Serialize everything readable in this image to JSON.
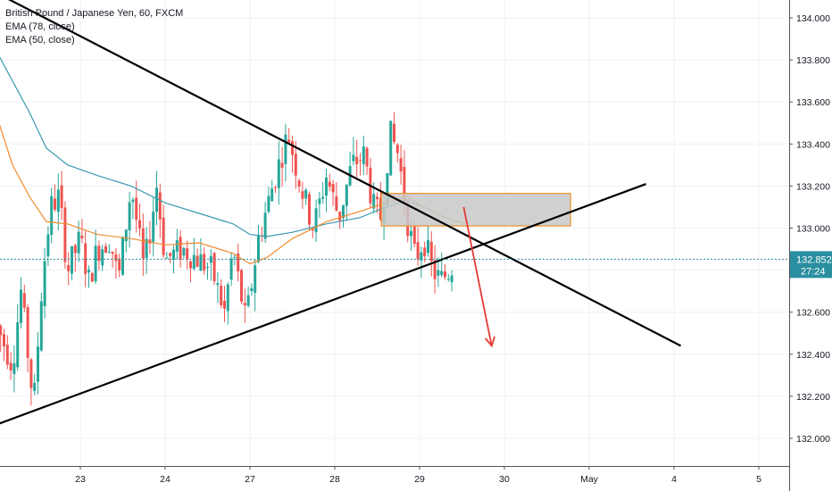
{
  "legend": {
    "title": "British Pound / Japanese Yen, 60, FXCM",
    "ema1": "EMA (78, close)",
    "ema2": "EMA (50, close)"
  },
  "colors": {
    "up": "#26a69a",
    "down": "#ef5350",
    "ema78": "#3a9bb0",
    "ema50": "#f28b2e",
    "trendline": "#000000",
    "zone_fill": "#c8c8c8",
    "zone_border": "#f0902a",
    "arrow": "#e53935",
    "price_label": "#2a8fa0",
    "grid": "#eef0f3"
  },
  "chart_data": {
    "type": "candlestick",
    "ylim": [
      131.86,
      134.09
    ],
    "yticks": [
      "134.000",
      "133.800",
      "133.600",
      "133.400",
      "133.200",
      "133.000",
      "132.800",
      "132.600",
      "132.400",
      "132.200",
      "132.000"
    ],
    "ytick_values": [
      134.0,
      133.8,
      133.6,
      133.4,
      133.2,
      133.0,
      132.8,
      132.6,
      132.4,
      132.2,
      132.0
    ],
    "xticks": [
      {
        "label": "23",
        "t": 1.0
      },
      {
        "label": "24",
        "t": 2.0
      },
      {
        "label": "27",
        "t": 3.0
      },
      {
        "label": "28",
        "t": 4.0
      },
      {
        "label": "29",
        "t": 5.0
      },
      {
        "label": "30",
        "t": 6.0
      },
      {
        "label": "May",
        "t": 7.0
      },
      {
        "label": "4",
        "t": 8.0
      },
      {
        "label": "5",
        "t": 9.0
      }
    ],
    "current_price": {
      "value": 132.852,
      "label": "132.852",
      "countdown": "27:24"
    },
    "price_path": [
      [
        0.0,
        132.55
      ],
      [
        0.2,
        132.35
      ],
      [
        0.3,
        132.7
      ],
      [
        0.45,
        132.15
      ],
      [
        0.55,
        132.75
      ],
      [
        0.65,
        133.1
      ],
      [
        0.75,
        133.15
      ],
      [
        0.85,
        132.8
      ],
      [
        1.0,
        132.95
      ],
      [
        1.1,
        132.75
      ],
      [
        1.2,
        132.9
      ],
      [
        1.35,
        132.95
      ],
      [
        1.45,
        132.75
      ],
      [
        1.6,
        133.2
      ],
      [
        1.75,
        132.8
      ],
      [
        1.9,
        133.2
      ],
      [
        2.0,
        132.85
      ],
      [
        2.2,
        132.9
      ],
      [
        2.4,
        132.85
      ],
      [
        2.55,
        132.8
      ],
      [
        2.7,
        132.6
      ],
      [
        2.8,
        132.9
      ],
      [
        2.95,
        132.55
      ],
      [
        3.1,
        132.95
      ],
      [
        3.3,
        133.25
      ],
      [
        3.45,
        133.45
      ],
      [
        3.6,
        133.2
      ],
      [
        3.75,
        133.0
      ],
      [
        3.9,
        133.25
      ],
      [
        4.05,
        133.05
      ],
      [
        4.2,
        133.3
      ],
      [
        4.35,
        133.35
      ],
      [
        4.45,
        133.1
      ],
      [
        4.55,
        133.05
      ],
      [
        4.65,
        133.45
      ],
      [
        4.75,
        133.35
      ],
      [
        4.85,
        133.05
      ],
      [
        4.95,
        132.85
      ],
      [
        5.05,
        132.95
      ],
      [
        5.15,
        132.8
      ],
      [
        5.25,
        132.75
      ],
      [
        5.35,
        132.8
      ],
      [
        5.42,
        132.85
      ]
    ],
    "ema78": [
      [
        0.0,
        133.85
      ],
      [
        0.2,
        133.7
      ],
      [
        0.4,
        133.55
      ],
      [
        0.6,
        133.38
      ],
      [
        0.85,
        133.3
      ],
      [
        1.2,
        133.25
      ],
      [
        1.6,
        133.2
      ],
      [
        2.0,
        133.12
      ],
      [
        2.4,
        133.07
      ],
      [
        2.8,
        133.02
      ],
      [
        3.0,
        132.97
      ],
      [
        3.2,
        132.96
      ],
      [
        3.5,
        132.98
      ],
      [
        3.9,
        133.02
      ],
      [
        4.3,
        133.05
      ],
      [
        4.6,
        133.1
      ],
      [
        4.85,
        133.13
      ],
      [
        5.05,
        133.1
      ],
      [
        5.3,
        133.05
      ],
      [
        5.55,
        133.02
      ]
    ],
    "ema50": [
      [
        0.0,
        133.55
      ],
      [
        0.2,
        133.3
      ],
      [
        0.4,
        133.15
      ],
      [
        0.6,
        133.03
      ],
      [
        0.85,
        133.02
      ],
      [
        1.2,
        132.97
      ],
      [
        1.6,
        132.95
      ],
      [
        2.0,
        132.92
      ],
      [
        2.4,
        132.93
      ],
      [
        2.8,
        132.88
      ],
      [
        3.0,
        132.83
      ],
      [
        3.2,
        132.86
      ],
      [
        3.5,
        132.95
      ],
      [
        3.9,
        133.03
      ],
      [
        4.3,
        133.08
      ],
      [
        4.6,
        133.12
      ],
      [
        4.85,
        133.15
      ],
      [
        5.05,
        133.1
      ],
      [
        5.3,
        133.05
      ],
      [
        5.55,
        133.02
      ]
    ],
    "trendlines": [
      {
        "name": "descending",
        "from": [
          0.1,
          134.1
        ],
        "to": [
          8.08,
          132.44
        ]
      },
      {
        "name": "ascending",
        "from": [
          -0.96,
          131.92
        ],
        "to": [
          7.67,
          133.21
        ]
      }
    ],
    "zone": {
      "t_start": 4.55,
      "t_end": 6.78,
      "y_top": 133.165,
      "y_bottom": 133.01
    },
    "arrow": {
      "from": [
        5.52,
        133.1
      ],
      "to": [
        5.85,
        132.44
      ]
    }
  }
}
